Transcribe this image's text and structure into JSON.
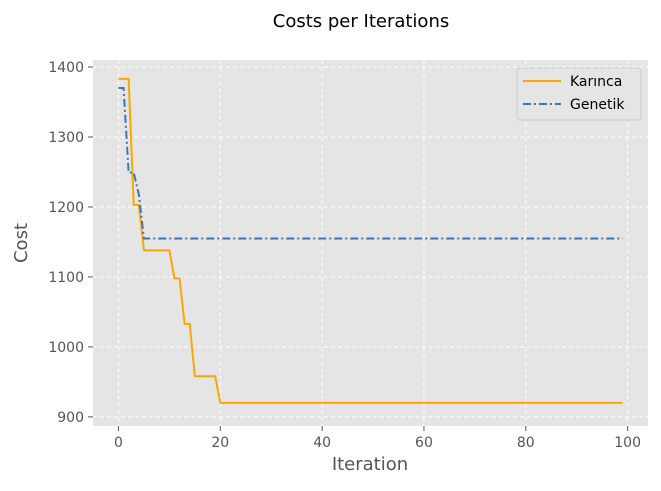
{
  "chart_data": {
    "type": "line",
    "title": "Costs per Iterations",
    "xlabel": "Iteration",
    "ylabel": "Cost",
    "xlim": [
      -5,
      104
    ],
    "ylim": [
      887,
      1410
    ],
    "xticks": [
      0,
      20,
      40,
      60,
      80,
      100
    ],
    "yticks": [
      900,
      1000,
      1100,
      1200,
      1300,
      1400
    ],
    "xtick_labels": [
      "0",
      "20",
      "40",
      "60",
      "80",
      "100"
    ],
    "ytick_labels": [
      "900",
      "1000",
      "1100",
      "1200",
      "1300",
      "1400"
    ],
    "grid": true,
    "background": "#e5e5e5",
    "legend_position": "top-right",
    "series": [
      {
        "name": "Karınca",
        "color": "#ffa500",
        "linestyle": "solid",
        "points": [
          [
            0,
            1383
          ],
          [
            1,
            1383
          ],
          [
            2,
            1383
          ],
          [
            3,
            1203
          ],
          [
            4,
            1203
          ],
          [
            5,
            1138
          ],
          [
            6,
            1138
          ],
          [
            7,
            1138
          ],
          [
            8,
            1138
          ],
          [
            9,
            1138
          ],
          [
            10,
            1138
          ],
          [
            11,
            1098
          ],
          [
            12,
            1098
          ],
          [
            13,
            1033
          ],
          [
            14,
            1033
          ],
          [
            15,
            958
          ],
          [
            16,
            958
          ],
          [
            17,
            958
          ],
          [
            18,
            958
          ],
          [
            19,
            958
          ],
          [
            20,
            920
          ],
          [
            30,
            920
          ],
          [
            40,
            920
          ],
          [
            50,
            920
          ],
          [
            60,
            920
          ],
          [
            70,
            920
          ],
          [
            80,
            920
          ],
          [
            90,
            920
          ],
          [
            99,
            920
          ]
        ]
      },
      {
        "name": "Genetik",
        "color": "#3a78b5",
        "linestyle": "dashdot",
        "points": [
          [
            0,
            1370
          ],
          [
            1,
            1370
          ],
          [
            2,
            1249
          ],
          [
            3,
            1249
          ],
          [
            4,
            1218
          ],
          [
            5,
            1155
          ],
          [
            10,
            1155
          ],
          [
            20,
            1155
          ],
          [
            30,
            1155
          ],
          [
            40,
            1155
          ],
          [
            50,
            1155
          ],
          [
            60,
            1155
          ],
          [
            70,
            1155
          ],
          [
            80,
            1155
          ],
          [
            90,
            1155
          ],
          [
            99,
            1155
          ]
        ]
      }
    ]
  }
}
